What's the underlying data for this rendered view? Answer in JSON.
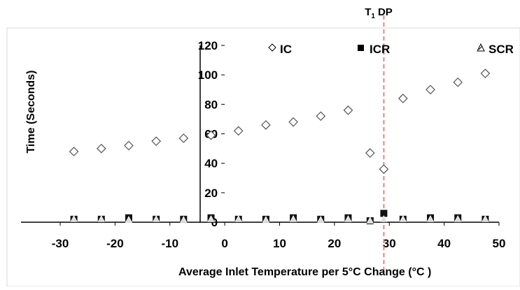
{
  "chart_data": {
    "type": "scatter",
    "xlabel": "Average Inlet Temperature per 5°C Change (°C )",
    "ylabel": "Time (Seconds)",
    "xlim": [
      -30,
      50
    ],
    "ylim": [
      0,
      120
    ],
    "xticks": [
      -30,
      -20,
      -10,
      0,
      10,
      20,
      30,
      40,
      50
    ],
    "yticks": [
      0,
      20,
      40,
      60,
      80,
      100,
      120
    ],
    "grid": false,
    "legend_position": "top",
    "reference_line": {
      "x": 29,
      "label": "T",
      "label_subscript": "1",
      "label_suffix": "DP",
      "color": "#f08080"
    },
    "series": [
      {
        "name": "IC",
        "marker": "diamond-open",
        "x": [
          -27.5,
          -22.5,
          -17.5,
          -12.5,
          -7.5,
          -2.5,
          2.5,
          7.5,
          12.5,
          17.5,
          22.5,
          26.5,
          29,
          32.5,
          37.5,
          42.5,
          47.5
        ],
        "y": [
          48,
          50,
          52,
          55,
          57,
          59,
          62,
          66,
          68,
          72,
          76,
          47,
          36,
          84,
          90,
          95,
          101
        ]
      },
      {
        "name": "ICR",
        "marker": "square-filled",
        "x": [
          -27.5,
          -22.5,
          -17.5,
          -12.5,
          -7.5,
          -2.5,
          2.5,
          7.5,
          12.5,
          17.5,
          22.5,
          26.5,
          29,
          32.5,
          37.5,
          42.5,
          47.5
        ],
        "y": [
          2,
          2,
          3,
          2,
          2,
          3,
          2,
          2,
          3,
          2,
          3,
          1,
          6,
          2,
          3,
          3,
          2
        ]
      },
      {
        "name": "SCR",
        "marker": "triangle-hatched",
        "x": [
          -27.5,
          -22.5,
          -17.5,
          -12.5,
          -7.5,
          -2.5,
          2.5,
          7.5,
          12.5,
          17.5,
          22.5,
          26.5,
          29,
          32.5,
          37.5,
          42.5,
          47.5
        ],
        "y": [
          2,
          2,
          1.5,
          2,
          1.5,
          2,
          2,
          1.5,
          2,
          1.5,
          2,
          1,
          2,
          2,
          2,
          2,
          2
        ]
      }
    ]
  }
}
